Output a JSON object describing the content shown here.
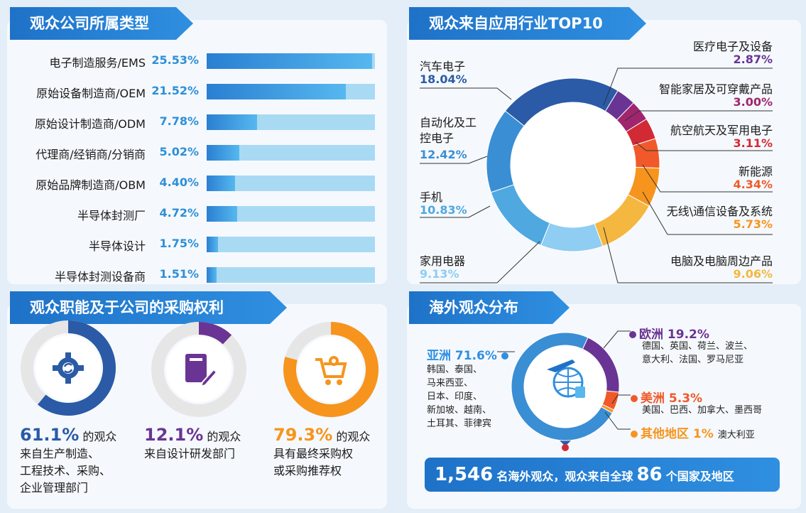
{
  "company_type": {
    "title": "观众公司所属类型",
    "chart_data": {
      "type": "bar",
      "categories": [
        "电子制造服务/EMS",
        "原始设备制造商/OEM",
        "原始设计制造商/ODM",
        "代理商/经销商/分销商",
        "原始品牌制造商/OBM",
        "半导体封测厂",
        "半导体设计",
        "半导体封测设备商"
      ],
      "values": [
        25.53,
        21.52,
        7.78,
        5.02,
        4.4,
        4.72,
        1.75,
        1.51
      ],
      "labels": [
        "25.53%",
        "21.52%",
        "7.78%",
        "5.02%",
        "4.40%",
        "4.72%",
        "1.75%",
        "1.51%"
      ],
      "xlim": [
        0,
        26
      ]
    }
  },
  "industry": {
    "title": "观众来自应用行业TOP10",
    "chart_data": {
      "type": "pie",
      "categories": [
        "汽车电子",
        "医疗电子及设备",
        "智能家居及可穿戴产品",
        "航空航天及军用电子",
        "新能源",
        "无线\\通信设备及系统",
        "电脑及电脑周边产品",
        "家用电器",
        "手机",
        "自动化及工控电子"
      ],
      "values": [
        18.04,
        2.87,
        3.0,
        3.11,
        4.34,
        5.73,
        9.06,
        9.13,
        10.83,
        12.42
      ],
      "labels": [
        "18.04%",
        "2.87%",
        "3.00%",
        "3.11%",
        "4.34%",
        "5.73%",
        "9.06%",
        "9.13%",
        "10.83%",
        "12.42%"
      ],
      "colors": [
        "#2b5aa6",
        "#6a3494",
        "#a0256e",
        "#d22a35",
        "#f1592a",
        "#f7941d",
        "#f4b740",
        "#8fcdf2",
        "#4fa8e0",
        "#3a8ed4"
      ]
    }
  },
  "roles": {
    "title": "观众职能及于公司的采购权利",
    "chart_data": {
      "type": "pie",
      "categories": [
        "来自生产制造、工程技术、采购、企业管理部门",
        "来自设计研发部门",
        "具有最终采购权或采购推荐权"
      ],
      "values": [
        61.1,
        12.1,
        79.3
      ]
    },
    "items": [
      {
        "pct": "61.1%",
        "text1": "的观众",
        "text2": "来自生产制造、",
        "text3": "工程技术、采购、",
        "text4": "企业管理部门",
        "color": "#2b5aa6"
      },
      {
        "pct": "12.1%",
        "text1": "的观众",
        "text2": "来自设计研发部门",
        "text3": "",
        "text4": "",
        "color": "#6a3494"
      },
      {
        "pct": "79.3%",
        "text1": "的观众",
        "text2": "具有最终采购权",
        "text3": "或采购推荐权",
        "text4": "",
        "color": "#f7941d"
      }
    ]
  },
  "overseas": {
    "title": "海外观众分布",
    "chart_data": {
      "type": "pie",
      "categories": [
        "亚洲",
        "欧洲",
        "美洲",
        "其他地区"
      ],
      "values": [
        71.6,
        19.2,
        5.3,
        1
      ],
      "colors": [
        "#3a8ed4",
        "#6a3494",
        "#f1592a",
        "#f7941d"
      ]
    },
    "asia": {
      "name": "亚洲 71.6%",
      "countries": [
        "韩国、泰国、",
        "马来西亚、",
        "日本、印度、",
        "新加坡、越南、",
        "土耳其、菲律宾"
      ]
    },
    "europe": {
      "name": "欧洲 19.2%",
      "countries": [
        "德国、英国、荷兰、波兰、",
        "意大利、法国、罗马尼亚"
      ]
    },
    "america": {
      "name": "美洲 5.3%",
      "countries": [
        "美国、巴西、加拿大、墨西哥"
      ]
    },
    "other": {
      "name": "其他地区 1%",
      "countries": [
        "澳大利亚"
      ]
    },
    "footer": {
      "count": "1,546",
      "text1": "名海外观众，观众来自全球",
      "countries": "86",
      "text2": "个国家及地区"
    }
  }
}
